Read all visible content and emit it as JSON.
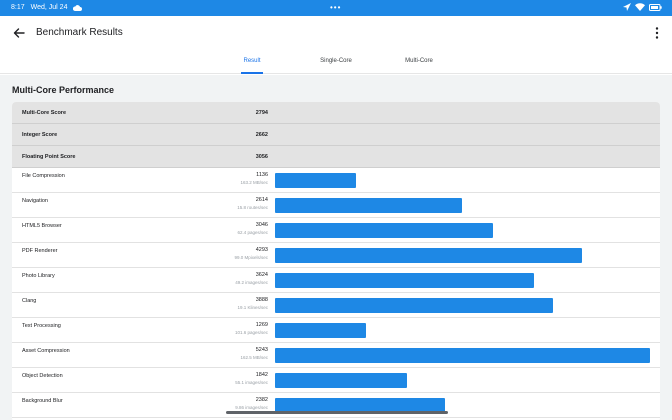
{
  "status_bar": {
    "time": "8:17",
    "date": "Wed, Jul 24",
    "center_dots": "•••",
    "icons": [
      "cloud-icon",
      "location-icon",
      "wifi-icon",
      "battery-icon"
    ]
  },
  "app_bar": {
    "title": "Benchmark Results",
    "back_icon": "arrow-left-icon",
    "menu_icon": "more-vertical-icon"
  },
  "tabs": [
    {
      "label": "Result",
      "active": true
    },
    {
      "label": "Single-Core",
      "active": false
    },
    {
      "label": "Multi-Core",
      "active": false
    }
  ],
  "section": {
    "title": "Multi-Core Performance",
    "max_score": 5243,
    "bar_color": "#1e88e5",
    "summary": [
      {
        "label": "Multi-Core Score",
        "score": "2794"
      },
      {
        "label": "Integer Score",
        "score": "2662"
      },
      {
        "label": "Floating Point Score",
        "score": "3056"
      }
    ],
    "benchmarks": [
      {
        "label": "File Compression",
        "score": "1136",
        "rate": "163.2 MB/sec",
        "value": 1136
      },
      {
        "label": "Navigation",
        "score": "2614",
        "rate": "15.8 routes/sec",
        "value": 2614
      },
      {
        "label": "HTML5 Browser",
        "score": "3046",
        "rate": "62.4 pages/sec",
        "value": 3046
      },
      {
        "label": "PDF Renderer",
        "score": "4293",
        "rate": "99.0 Mpixels/sec",
        "value": 4293
      },
      {
        "label": "Photo Library",
        "score": "3624",
        "rate": "49.2 images/sec",
        "value": 3624
      },
      {
        "label": "Clang",
        "score": "3888",
        "rate": "19.1 Klines/sec",
        "value": 3888
      },
      {
        "label": "Text Processing",
        "score": "1269",
        "rate": "101.6 pages/sec",
        "value": 1269
      },
      {
        "label": "Asset Compression",
        "score": "5243",
        "rate": "162.5 MB/sec",
        "value": 5243
      },
      {
        "label": "Object Detection",
        "score": "1842",
        "rate": "55.1 images/sec",
        "value": 1842
      },
      {
        "label": "Background Blur",
        "score": "2382",
        "rate": "9.86 images/sec",
        "value": 2382
      }
    ]
  }
}
